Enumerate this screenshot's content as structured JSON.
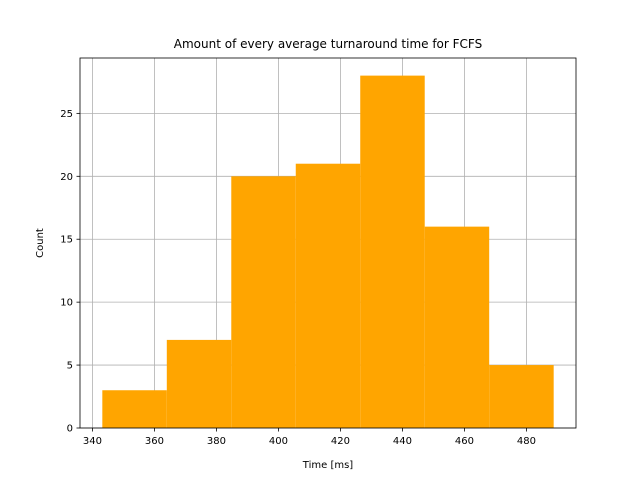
{
  "chart_data": {
    "type": "bar",
    "subtype": "histogram",
    "title": "Amount of every average turnaround time for FCFS",
    "xlabel": "Time [ms]",
    "ylabel": "Count",
    "bins": [
      {
        "x0": 343.2,
        "x1": 364.0,
        "count": 3
      },
      {
        "x0": 364.0,
        "x1": 384.8,
        "count": 7
      },
      {
        "x0": 384.8,
        "x1": 405.6,
        "count": 20
      },
      {
        "x0": 405.6,
        "x1": 426.4,
        "count": 21
      },
      {
        "x0": 426.4,
        "x1": 447.2,
        "count": 28
      },
      {
        "x0": 447.2,
        "x1": 468.0,
        "count": 16
      },
      {
        "x0": 468.0,
        "x1": 488.8,
        "count": 5
      }
    ],
    "xlim": [
      336.0,
      496.0
    ],
    "ylim": [
      0,
      29.4
    ],
    "xticks": [
      340,
      360,
      380,
      400,
      420,
      440,
      460,
      480
    ],
    "yticks": [
      0,
      5,
      10,
      15,
      20,
      25
    ],
    "bar_color": "#ffa500",
    "grid": true,
    "grid_color": "#b0b0b0"
  }
}
